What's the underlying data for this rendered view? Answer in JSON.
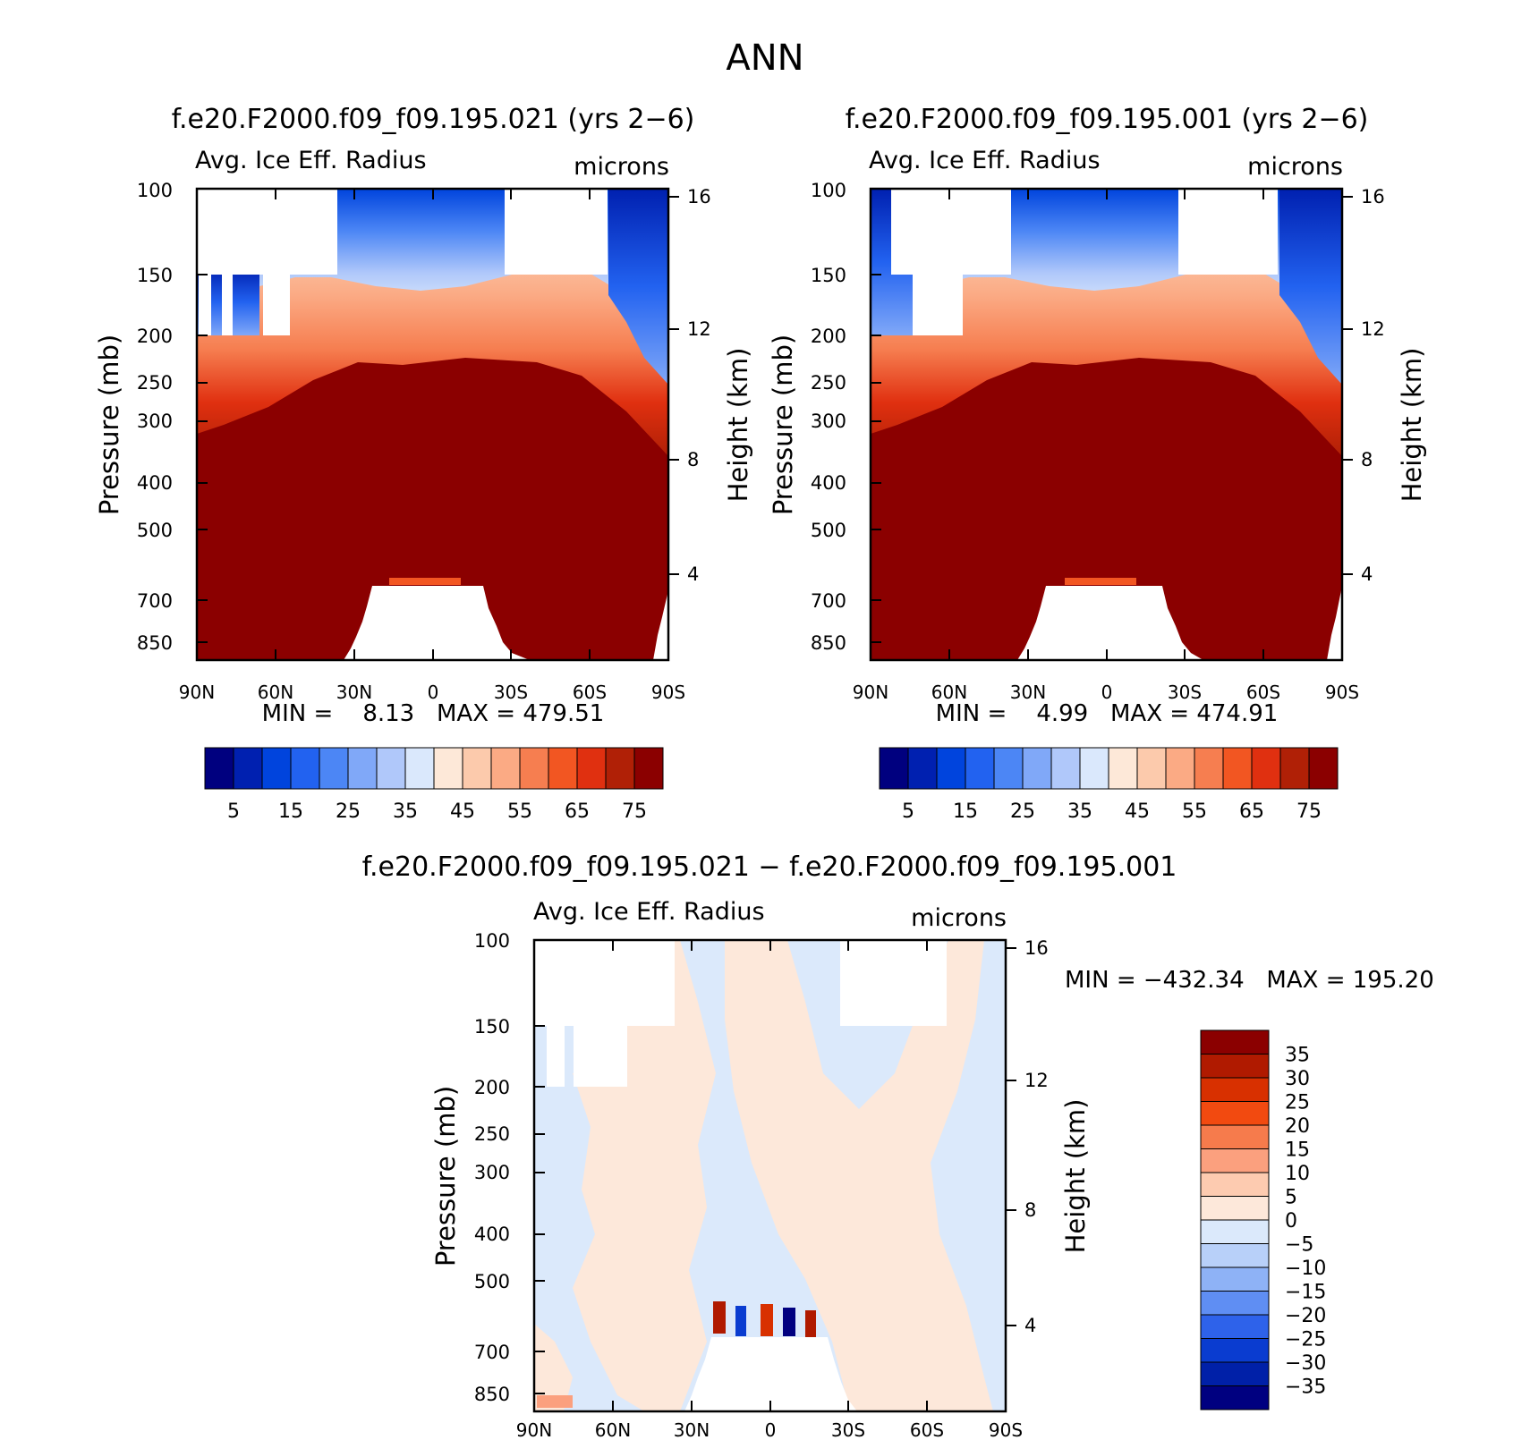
{
  "figure": {
    "title": "ANN"
  },
  "chart_data": [
    {
      "type": "heatmap",
      "title": "f.e20.F2000.f09_f09.195.021 (yrs 2−6)",
      "variable": "Avg. Ice Eff. Radius",
      "units": "microns",
      "ylabel": "Pressure (mb)",
      "y2label": "Height (km)",
      "x_ticks": [
        "90N",
        "60N",
        "30N",
        "0",
        "30S",
        "60S",
        "90S"
      ],
      "y_ticks": [
        "100",
        "150",
        "200",
        "250",
        "300",
        "400",
        "500",
        "700",
        "850"
      ],
      "y2_ticks": [
        "16",
        "12",
        "8",
        "4"
      ],
      "ylim": [
        100,
        1000
      ],
      "y_scale": "log",
      "stats": "MIN =    8.13   MAX = 479.51",
      "colorbar": {
        "orientation": "horizontal",
        "levels": [
          "5",
          "15",
          "25",
          "35",
          "45",
          "55",
          "65",
          "75"
        ],
        "colors": [
          "#00007f",
          "#0020b0",
          "#0044dd",
          "#2262f0",
          "#4c86f5",
          "#80a8f8",
          "#b0c8fa",
          "#dae8fc",
          "#fde8d8",
          "#fccaac",
          "#fbaa84",
          "#f67e50",
          "#f25622",
          "#e03010",
          "#b02006",
          "#8b0000"
        ]
      }
    },
    {
      "type": "heatmap",
      "title": "f.e20.F2000.f09_f09.195.001 (yrs 2−6)",
      "variable": "Avg. Ice Eff. Radius",
      "units": "microns",
      "ylabel": "Pressure (mb)",
      "y2label": "Height (km)",
      "x_ticks": [
        "90N",
        "60N",
        "30N",
        "0",
        "30S",
        "60S",
        "90S"
      ],
      "y_ticks": [
        "100",
        "150",
        "200",
        "250",
        "300",
        "400",
        "500",
        "700",
        "850"
      ],
      "y2_ticks": [
        "16",
        "12",
        "8",
        "4"
      ],
      "ylim": [
        100,
        1000
      ],
      "y_scale": "log",
      "stats": "MIN =    4.99   MAX = 474.91",
      "colorbar": {
        "orientation": "horizontal",
        "levels": [
          "5",
          "15",
          "25",
          "35",
          "45",
          "55",
          "65",
          "75"
        ],
        "colors": [
          "#00007f",
          "#0020b0",
          "#0044dd",
          "#2262f0",
          "#4c86f5",
          "#80a8f8",
          "#b0c8fa",
          "#dae8fc",
          "#fde8d8",
          "#fccaac",
          "#fbaa84",
          "#f67e50",
          "#f25622",
          "#e03010",
          "#b02006",
          "#8b0000"
        ]
      }
    },
    {
      "type": "heatmap",
      "title": "f.e20.F2000.f09_f09.195.021 − f.e20.F2000.f09_f09.195.001",
      "variable": "Avg. Ice Eff. Radius",
      "units": "microns",
      "ylabel": "Pressure (mb)",
      "y2label": "Height (km)",
      "x_ticks": [
        "90N",
        "60N",
        "30N",
        "0",
        "30S",
        "60S",
        "90S"
      ],
      "y_ticks": [
        "100",
        "150",
        "200",
        "250",
        "300",
        "400",
        "500",
        "700",
        "850"
      ],
      "y2_ticks": [
        "16",
        "12",
        "8",
        "4"
      ],
      "ylim": [
        100,
        1000
      ],
      "y_scale": "log",
      "stats": "MIN = −432.34   MAX = 195.20",
      "colorbar": {
        "orientation": "vertical",
        "levels": [
          "35",
          "30",
          "25",
          "20",
          "15",
          "10",
          "5",
          "0",
          "−5",
          "−10",
          "−15",
          "−20",
          "−25",
          "−30",
          "−35"
        ],
        "colors": [
          "#8b0000",
          "#b01a00",
          "#d83000",
          "#f24a10",
          "#f67b4c",
          "#fba07e",
          "#fdcbb0",
          "#fde8da",
          "#dbe9fb",
          "#b8d0f9",
          "#8eb2f6",
          "#5f8ef3",
          "#2e62ea",
          "#0a3cd0",
          "#0020a8",
          "#000080"
        ]
      }
    }
  ]
}
